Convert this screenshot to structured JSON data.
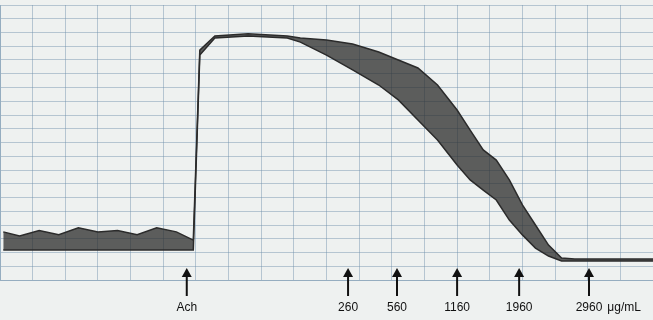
{
  "chart_data": {
    "type": "line",
    "x": [
      0.5,
      3,
      6,
      9,
      12,
      15,
      18,
      21,
      24,
      27,
      29.6,
      30.6,
      32.9,
      38,
      44,
      46,
      50,
      54,
      58,
      61,
      64,
      67,
      70,
      72,
      74,
      76,
      78,
      80,
      82,
      84,
      86,
      88,
      90,
      94,
      100
    ],
    "series": [
      {
        "color": "#2b2b2b",
        "values": [
          17.5,
          16,
          18,
          16.5,
          19,
          17.5,
          18,
          16.5,
          19,
          17.5,
          14.5,
          83.6,
          88.7,
          89.5,
          88.7,
          88,
          87.3,
          85.8,
          82.9,
          80,
          77.1,
          70.9,
          61.8,
          54.5,
          47.3,
          43.6,
          36.4,
          27.3,
          20,
          12.7,
          8,
          7.6,
          7.6,
          7.6,
          7.6
        ]
      },
      {
        "color": "#2b2b2b",
        "values": [
          10.9,
          10.9,
          10.9,
          10.9,
          10.9,
          10.9,
          10.9,
          10.9,
          10.9,
          10.9,
          10.9,
          81.8,
          88,
          88.7,
          88,
          86.5,
          81.8,
          76.4,
          70.9,
          65.5,
          58.2,
          50.9,
          41.8,
          36.4,
          32.7,
          29.1,
          21.8,
          16.4,
          11.6,
          8.7,
          6.9,
          6.9,
          6.9,
          6.9,
          6.9
        ]
      }
    ],
    "xlim": [
      0,
      100
    ],
    "ylim": [
      0,
      100
    ],
    "xticks": [
      0,
      5,
      10,
      15,
      20,
      25,
      30,
      35,
      40,
      45,
      50,
      55,
      60,
      65,
      70,
      75,
      80,
      85,
      90,
      95,
      100
    ],
    "yticks": [
      0,
      5,
      10,
      15,
      20,
      25,
      30,
      35,
      40,
      45,
      50,
      55,
      60,
      65,
      70,
      75,
      80,
      85,
      90,
      95,
      100
    ],
    "grid": true,
    "tick_labels": false,
    "annotations": [
      {
        "x": 28.6,
        "text": "Ach"
      },
      {
        "x": 53.3,
        "text": "260"
      },
      {
        "x": 60.8,
        "text": "560"
      },
      {
        "x": 70.0,
        "text": "1160"
      },
      {
        "x": 79.5,
        "text": "1960"
      },
      {
        "x": 90.2,
        "text": "2960"
      }
    ],
    "annotation_unit": "μg/mL"
  }
}
